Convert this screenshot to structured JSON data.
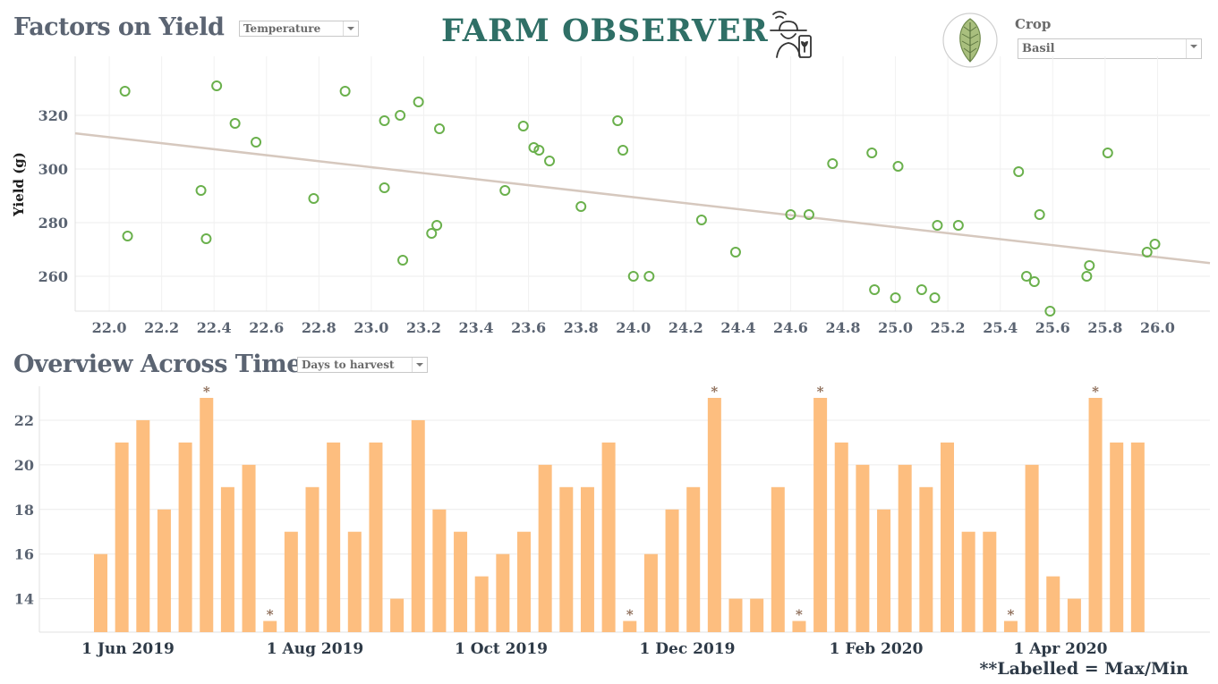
{
  "header": {
    "title": "FARM OBSERVER"
  },
  "crop_filter": {
    "label": "Crop",
    "value": "Basil"
  },
  "scatter_section": {
    "title": "Factors on Yield",
    "factor_dropdown": "Temperature"
  },
  "bars_section": {
    "title": "Overview Across Time",
    "measure_dropdown": "Days to harvest",
    "footnote": "**Labelled = Max/Min"
  },
  "icons": {
    "farmer": "farmer-with-phone-icon",
    "leaf": "basil-leaf-icon",
    "dropdown": "chevron-down-icon"
  },
  "colors": {
    "title": "#5b6472",
    "brand": "#2f6f66",
    "scatter_point": "#6ab04c",
    "trend_line": "#d6c8be",
    "bar": "#fdbe7f",
    "marker": "#8b6a55"
  },
  "chart_data": [
    {
      "type": "scatter",
      "title": "",
      "xlabel": "",
      "ylabel": "Yield (g)",
      "xlim": [
        21.87,
        26.2
      ],
      "ylim": [
        247,
        342
      ],
      "x_ticks": [
        "22.0",
        "22.2",
        "22.4",
        "22.6",
        "22.8",
        "23.0",
        "23.2",
        "23.4",
        "23.6",
        "23.8",
        "24.0",
        "24.2",
        "24.4",
        "24.6",
        "24.8",
        "25.0",
        "25.2",
        "25.4",
        "25.6",
        "25.8",
        "26.0"
      ],
      "y_ticks": [
        "260",
        "280",
        "300",
        "320"
      ],
      "grid": true,
      "trend_line": [
        [
          21.87,
          313.3
        ],
        [
          26.2,
          264.9
        ]
      ],
      "points": [
        [
          22.06,
          329
        ],
        [
          22.07,
          275
        ],
        [
          22.35,
          292
        ],
        [
          22.37,
          274
        ],
        [
          22.41,
          331
        ],
        [
          22.48,
          317
        ],
        [
          22.56,
          310
        ],
        [
          22.78,
          289
        ],
        [
          22.9,
          329
        ],
        [
          23.05,
          318
        ],
        [
          23.05,
          293
        ],
        [
          23.11,
          320
        ],
        [
          23.12,
          266
        ],
        [
          23.18,
          325
        ],
        [
          23.23,
          276
        ],
        [
          23.25,
          279
        ],
        [
          23.26,
          315
        ],
        [
          23.51,
          292
        ],
        [
          23.58,
          316
        ],
        [
          23.62,
          308
        ],
        [
          23.64,
          307
        ],
        [
          23.68,
          303
        ],
        [
          23.8,
          286
        ],
        [
          23.94,
          318
        ],
        [
          23.96,
          307
        ],
        [
          24.0,
          260
        ],
        [
          24.06,
          260
        ],
        [
          24.26,
          281
        ],
        [
          24.39,
          269
        ],
        [
          24.6,
          283
        ],
        [
          24.67,
          283
        ],
        [
          24.76,
          302
        ],
        [
          24.91,
          306
        ],
        [
          24.92,
          255
        ],
        [
          25.0,
          252
        ],
        [
          25.01,
          301
        ],
        [
          25.1,
          255
        ],
        [
          25.15,
          252
        ],
        [
          25.16,
          279
        ],
        [
          25.24,
          279
        ],
        [
          25.47,
          299
        ],
        [
          25.5,
          260
        ],
        [
          25.53,
          258
        ],
        [
          25.55,
          283
        ],
        [
          25.59,
          247
        ],
        [
          25.73,
          260
        ],
        [
          25.74,
          264
        ],
        [
          25.81,
          306
        ],
        [
          25.96,
          269
        ],
        [
          25.99,
          272
        ]
      ]
    },
    {
      "type": "bar",
      "title": "",
      "xlabel": "",
      "ylabel": "",
      "ylim": [
        12.5,
        23.2
      ],
      "y_ticks": [
        "14",
        "16",
        "18",
        "20",
        "22"
      ],
      "x_tick_labels": [
        "1 Jun 2019",
        "1 Aug 2019",
        "1 Oct 2019",
        "1 Dec 2019",
        "1 Feb 2020",
        "1 Apr 2020"
      ],
      "grid": true,
      "marker_symbol": "*",
      "values": [
        16,
        21,
        22,
        18,
        21,
        23,
        19,
        20,
        13,
        17,
        19,
        21,
        17,
        21,
        14,
        22,
        18,
        17,
        15,
        16,
        17,
        20,
        19,
        19,
        21,
        13,
        16,
        18,
        19,
        23,
        14,
        14,
        19,
        13,
        23,
        21,
        20,
        18,
        20,
        19,
        21,
        17,
        17,
        13,
        20,
        15,
        14,
        23,
        21,
        21
      ],
      "marked_indices": [
        5,
        8,
        25,
        29,
        33,
        34,
        43,
        47
      ]
    }
  ]
}
